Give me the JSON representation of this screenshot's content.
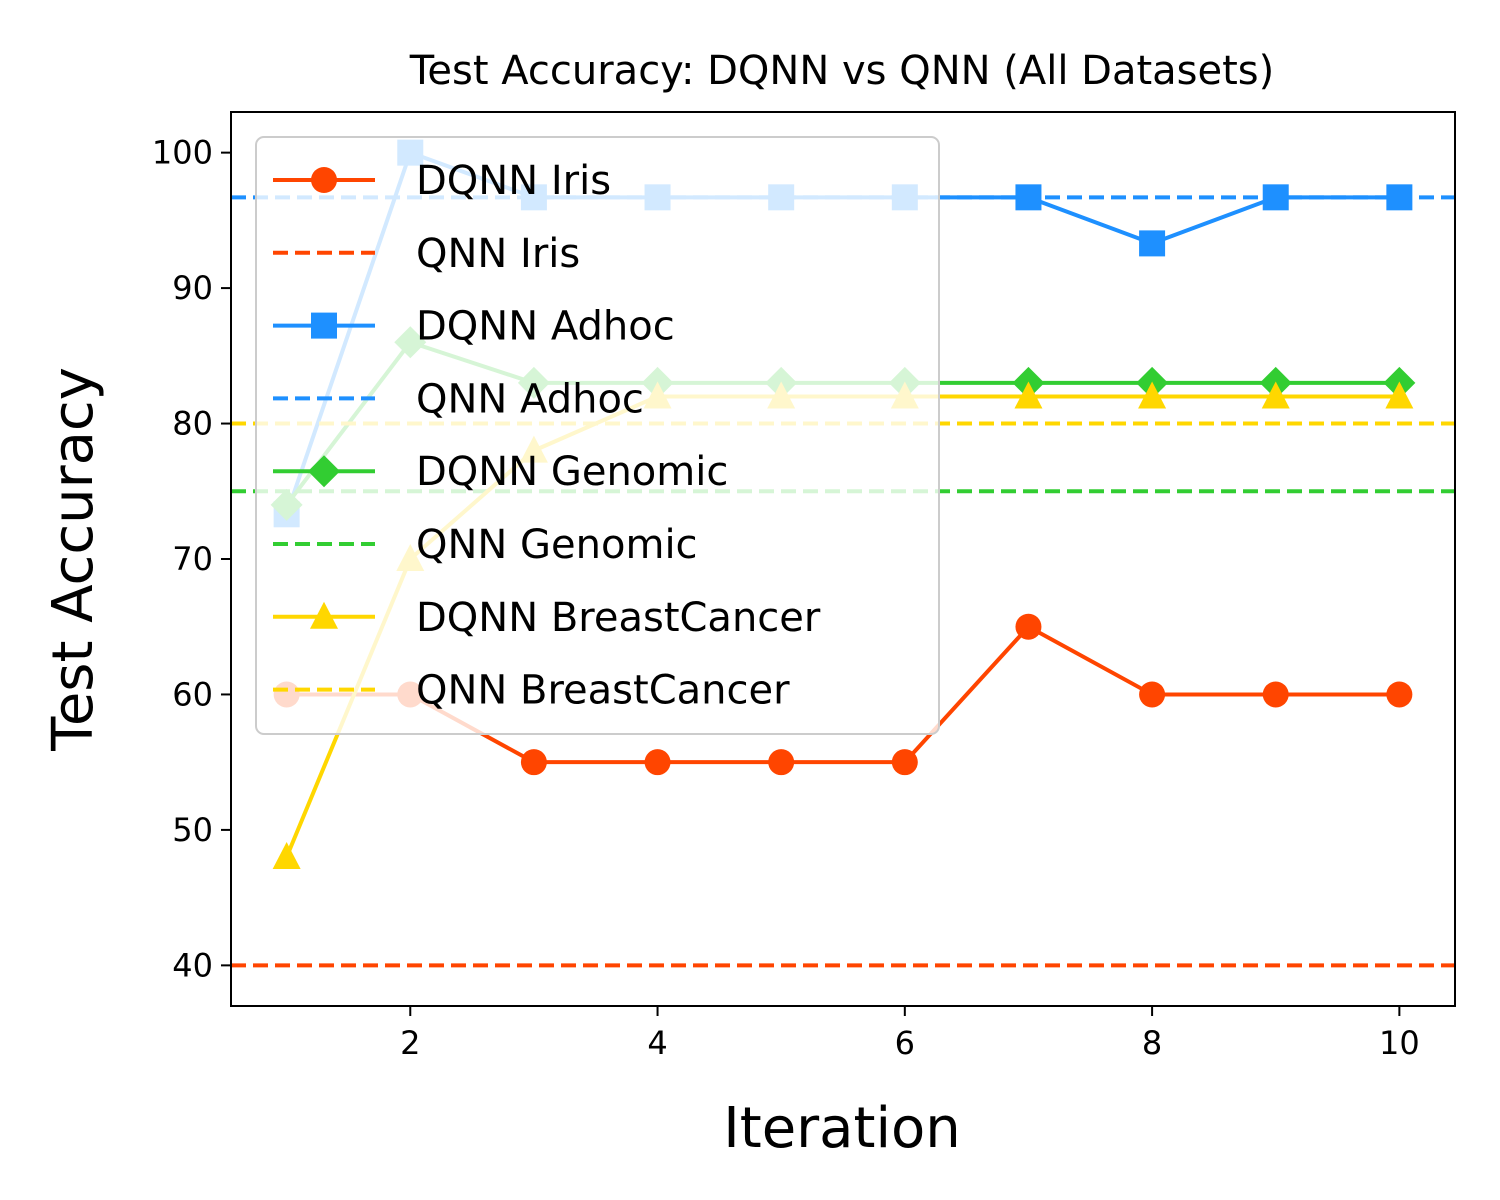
{
  "chart_data": {
    "type": "line",
    "title": "Test Accuracy: DQNN vs QNN (All Datasets)",
    "xlabel": "Iteration",
    "ylabel": "Test Accuracy",
    "xlim": [
      0.55,
      10.45
    ],
    "ylim": [
      37,
      103
    ],
    "xticks": [
      2,
      4,
      6,
      8,
      10
    ],
    "yticks": [
      40,
      50,
      60,
      70,
      80,
      90,
      100
    ],
    "grid": false,
    "legend_position": "upper-left",
    "x": [
      1,
      2,
      3,
      4,
      5,
      6,
      7,
      8,
      9,
      10
    ],
    "series": [
      {
        "name": "DQNN Iris",
        "color": "#FF4500",
        "marker": "circle",
        "style": "solid",
        "values": [
          60,
          60,
          55,
          55,
          55,
          55,
          65,
          60,
          60,
          60
        ]
      },
      {
        "name": "QNN Iris",
        "color": "#FF4500",
        "marker": "none",
        "style": "dashed",
        "constant": 40
      },
      {
        "name": "DQNN Adhoc",
        "color": "#1E90FF",
        "marker": "square",
        "style": "solid",
        "values": [
          73.3,
          100,
          96.7,
          96.7,
          96.7,
          96.7,
          96.7,
          93.3,
          96.7,
          96.7
        ]
      },
      {
        "name": "QNN Adhoc",
        "color": "#1E90FF",
        "marker": "none",
        "style": "dashed",
        "constant": 96.7
      },
      {
        "name": "DQNN Genomic",
        "color": "#32CD32",
        "marker": "diamond",
        "style": "solid",
        "values": [
          74,
          86,
          83,
          83,
          83,
          83,
          83,
          83,
          83,
          83
        ]
      },
      {
        "name": "QNN Genomic",
        "color": "#32CD32",
        "marker": "none",
        "style": "dashed",
        "constant": 75
      },
      {
        "name": "DQNN BreastCancer",
        "color": "#FFD700",
        "marker": "triangle",
        "style": "solid",
        "values": [
          48,
          70,
          78,
          82,
          82,
          82,
          82,
          82,
          82,
          82
        ]
      },
      {
        "name": "QNN BreastCancer",
        "color": "#FFD700",
        "marker": "none",
        "style": "dashed",
        "constant": 80
      }
    ]
  }
}
